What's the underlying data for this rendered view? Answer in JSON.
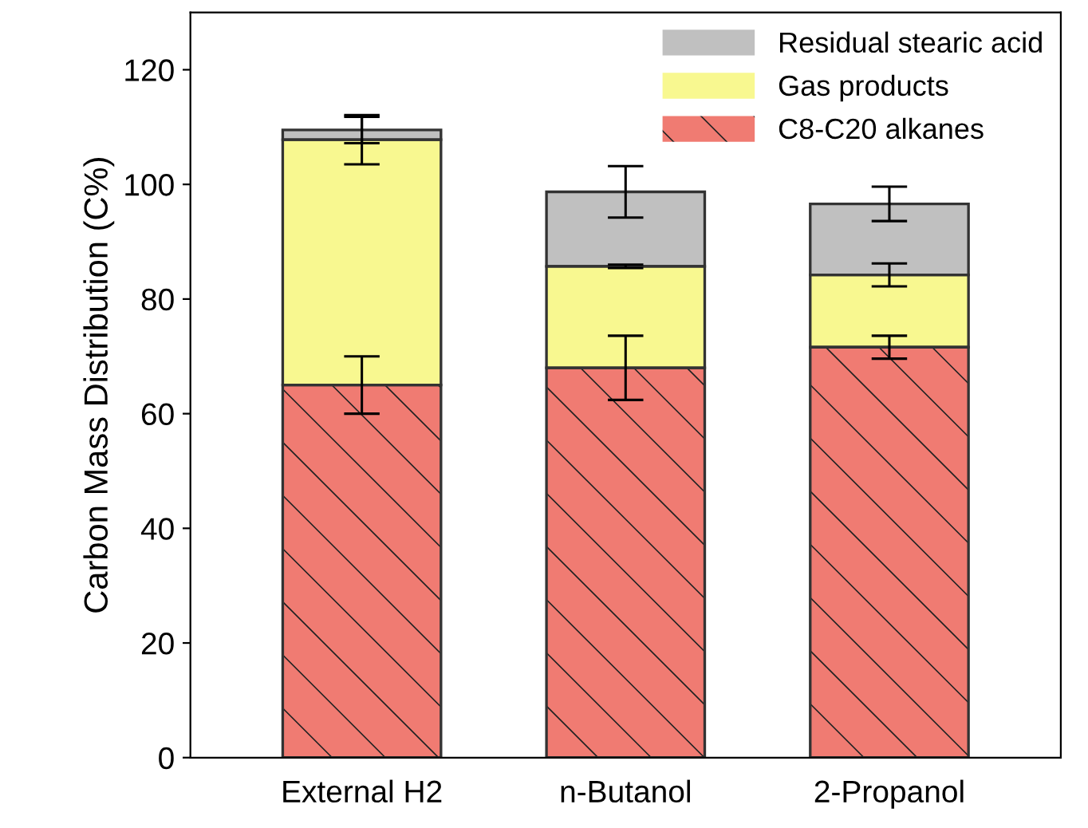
{
  "chart_data": {
    "type": "bar",
    "stacked": true,
    "ylabel": "Carbon Mass Distribution (C%)",
    "categories": [
      "External H2",
      "n-Butanol",
      "2-Propanol"
    ],
    "series": [
      {
        "name": "C8-C20 alkanes",
        "color": "#f07b72",
        "values": [
          65,
          68,
          71.6
        ],
        "errors": [
          5,
          5.6,
          2
        ]
      },
      {
        "name": "Gas products",
        "color": "#f8f890",
        "values": [
          42.8,
          17.7,
          12.6
        ],
        "errors": [
          4.3,
          0.3,
          2
        ]
      },
      {
        "name": "Residual stearic acid",
        "color": "#c0c0c0",
        "values": [
          1.7,
          13,
          12.4
        ],
        "errors": [
          2.3,
          4.5,
          3
        ]
      }
    ],
    "ylim": [
      0,
      130
    ],
    "yticks": [
      0,
      20,
      40,
      60,
      80,
      100,
      120
    ],
    "grid": false,
    "legend": "top right"
  }
}
